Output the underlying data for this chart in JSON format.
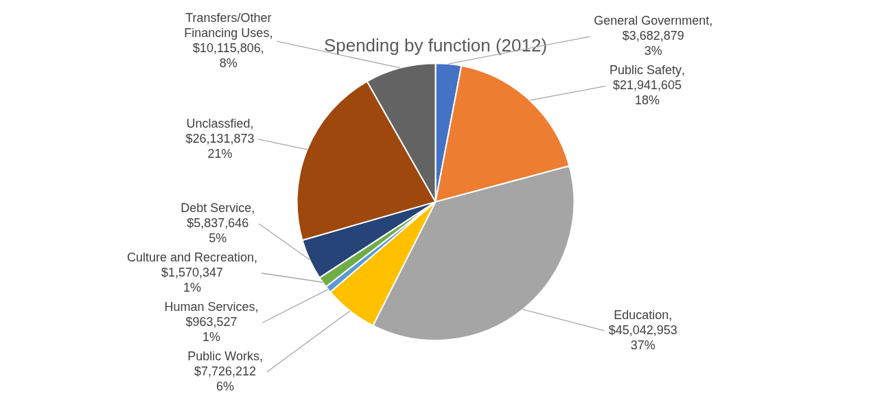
{
  "chart_data": {
    "type": "pie",
    "title": "Spending by function (2012)",
    "categories": [
      "General Government",
      "Public Safety",
      "Education",
      "Public Works",
      "Human Services",
      "Culture and Recreation",
      "Debt Service",
      "Unclassfied",
      "Transfers/Other Financing Uses"
    ],
    "values": [
      3682879,
      21941605,
      45042953,
      7726212,
      963527,
      1570347,
      5837646,
      26131873,
      10115806
    ],
    "colors": [
      "#4472c4",
      "#ed7d31",
      "#a5a5a5",
      "#ffc000",
      "#5b9bd5",
      "#70ad47",
      "#264478",
      "#9e480e",
      "#636363"
    ],
    "value_labels": [
      ",\n$3,682,879\n3%",
      ",\n$21,941,605\n18%",
      ",\n$45,042,953\n37%",
      ",\n$7,726,212\n6%",
      ",\n$963,527\n1%",
      ",\n$1,570,347\n1%",
      ",\n$5,837,646\n5%",
      ",\n$26,131,873\n21%",
      ",\n$10,115,806,\n8%"
    ]
  }
}
